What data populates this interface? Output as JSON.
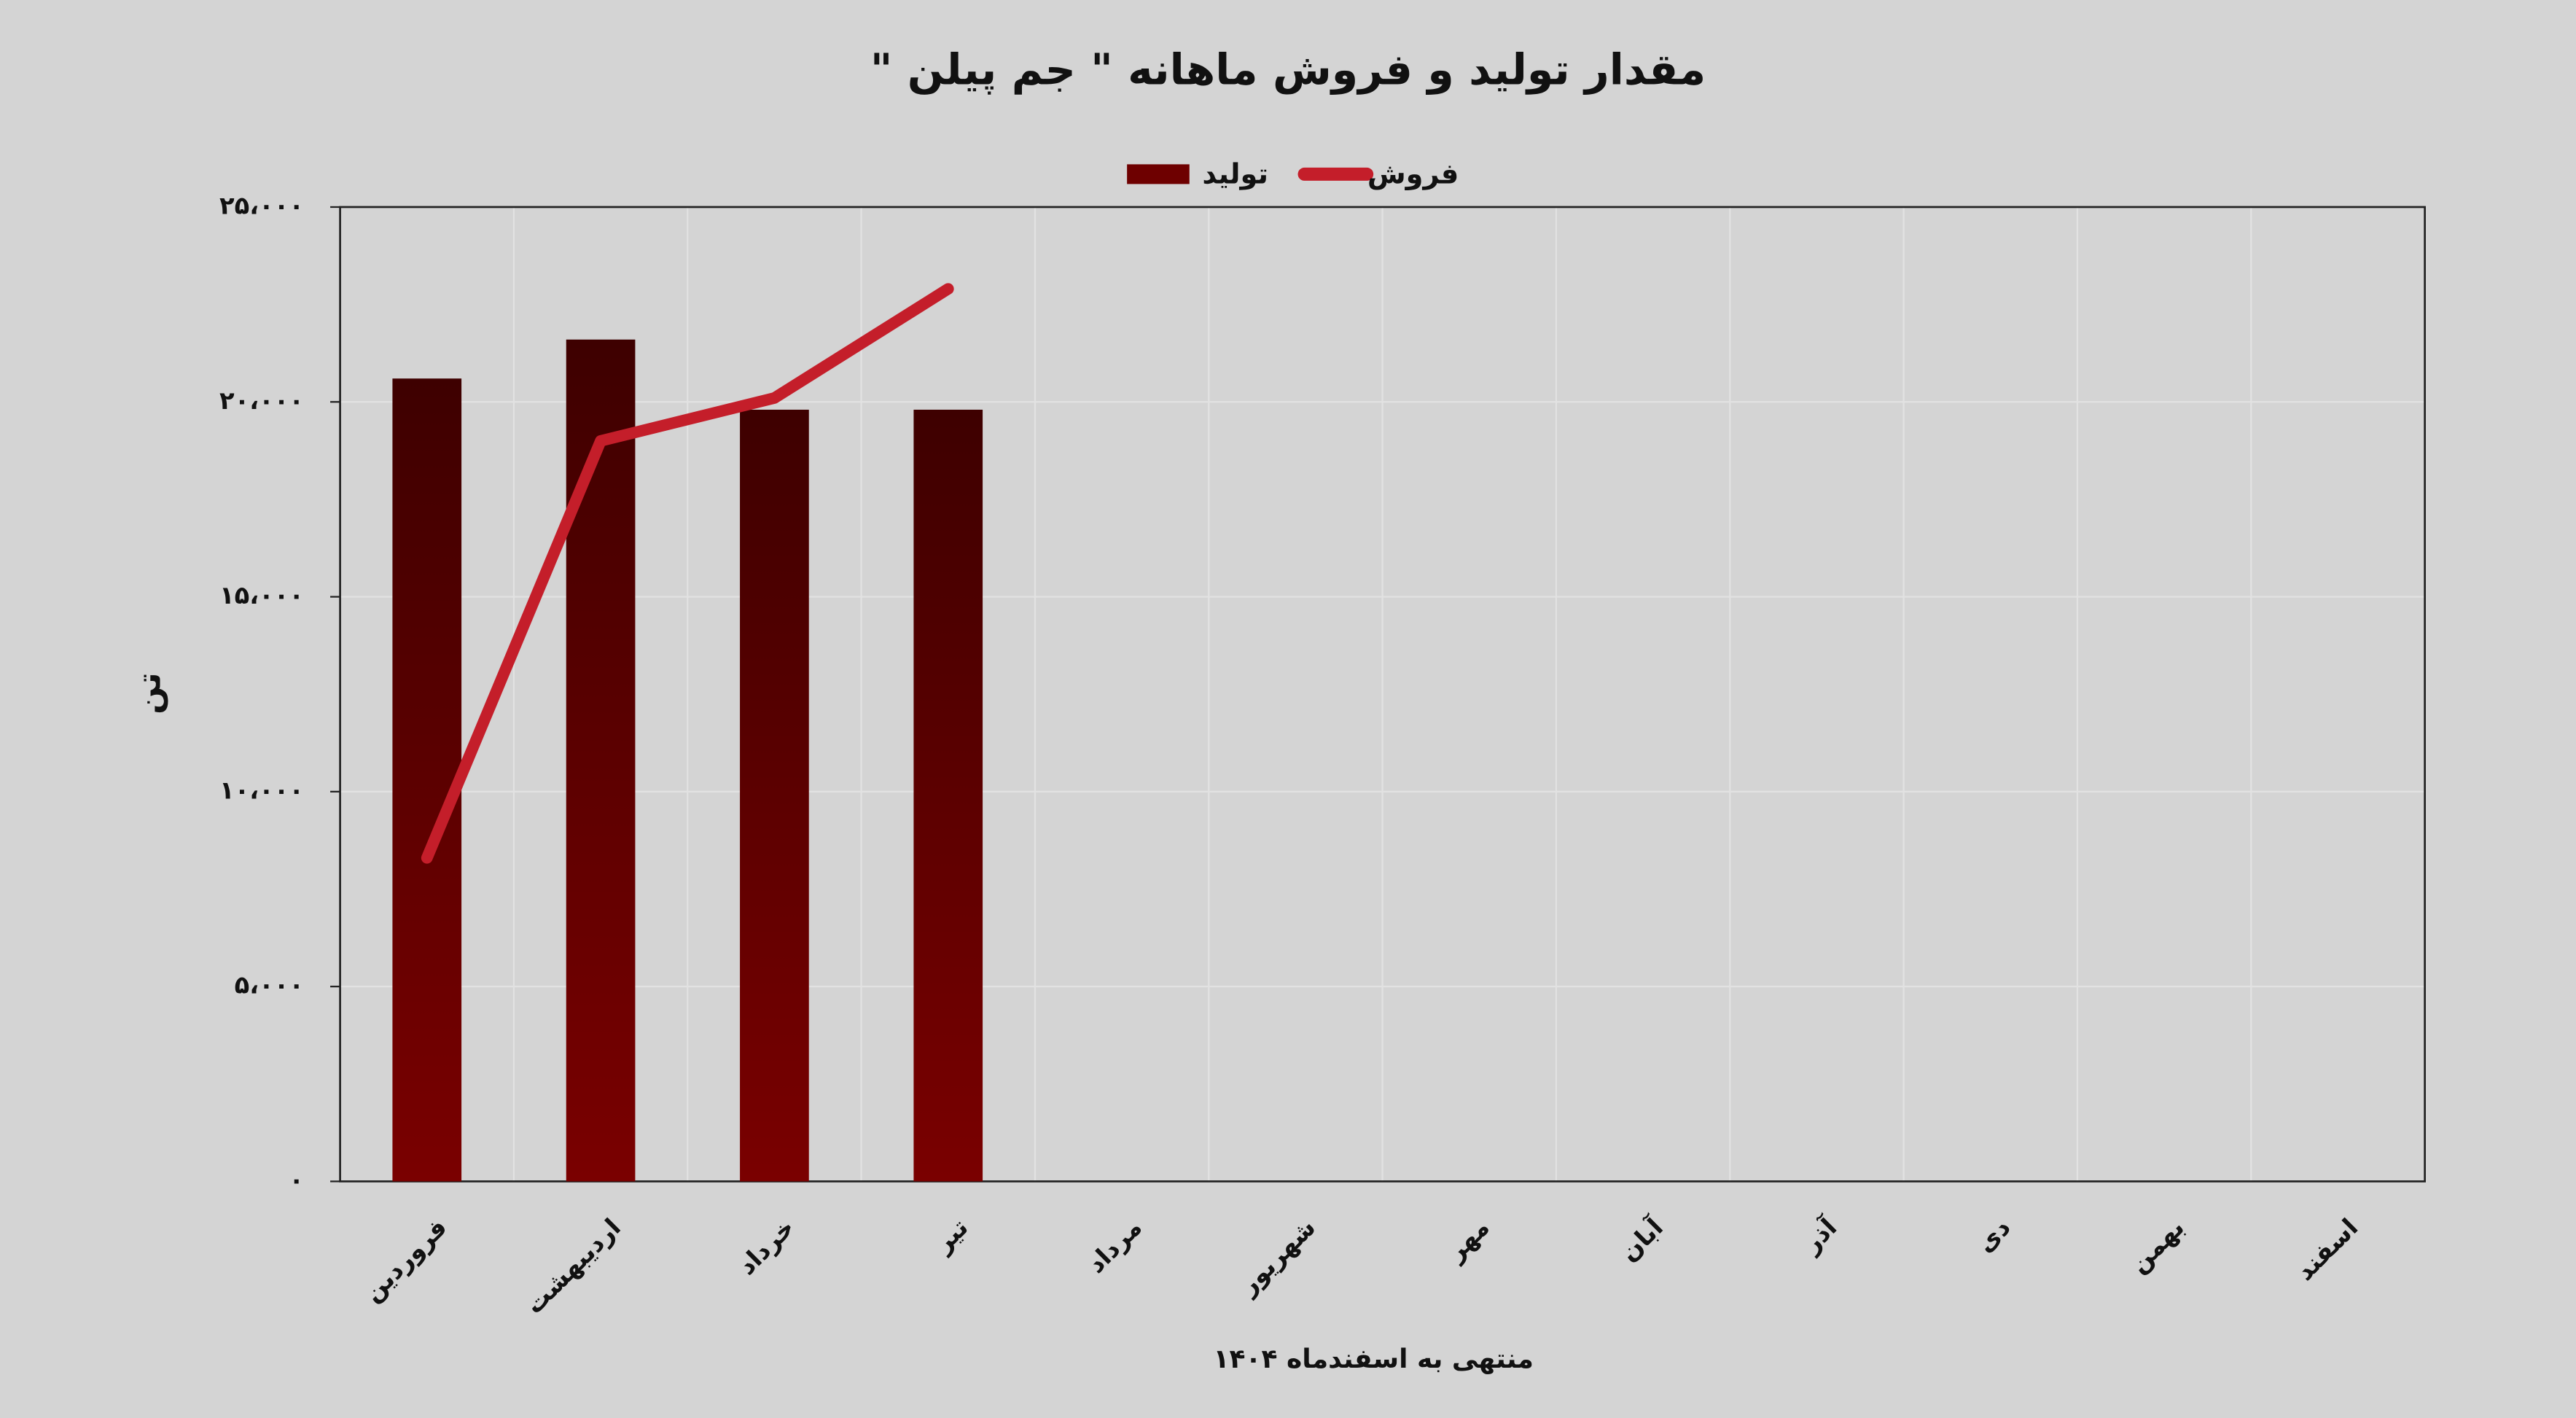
{
  "chart_data": {
    "type": "bar-line",
    "title": "مقدار تولید و فروش ماهانه \" جم پیلن \"",
    "y_label": "تن",
    "x_label": "منتهی به اسفندماه ۱۴۰۴",
    "categories": [
      "فروردین",
      "اردیبهشت",
      "خرداد",
      "تیر",
      "مرداد",
      "شهریور",
      "مهر",
      "آبان",
      "آذر",
      "دی",
      "بهمن",
      "اسفند"
    ],
    "series": [
      {
        "name": "تولید",
        "type": "bar",
        "color": "#6e0000",
        "values": [
          20600,
          21600,
          19800,
          19800,
          null,
          null,
          null,
          null,
          null,
          null,
          null,
          null
        ]
      },
      {
        "name": "فروش",
        "type": "line",
        "color": "#c41e2a",
        "values": [
          8300,
          19000,
          20100,
          22900,
          null,
          null,
          null,
          null,
          null,
          null,
          null,
          null
        ]
      }
    ],
    "ylim": [
      0,
      25000
    ],
    "yticks": [
      {
        "value": 0,
        "label": "۰"
      },
      {
        "value": 5000,
        "label": "۵،۰۰۰"
      },
      {
        "value": 10000,
        "label": "۱۰،۰۰۰"
      },
      {
        "value": 15000,
        "label": "۱۵،۰۰۰"
      },
      {
        "value": 20000,
        "label": "۲۰،۰۰۰"
      },
      {
        "value": 25000,
        "label": "۲۵،۰۰۰"
      }
    ],
    "grid": true,
    "legend": "top"
  }
}
